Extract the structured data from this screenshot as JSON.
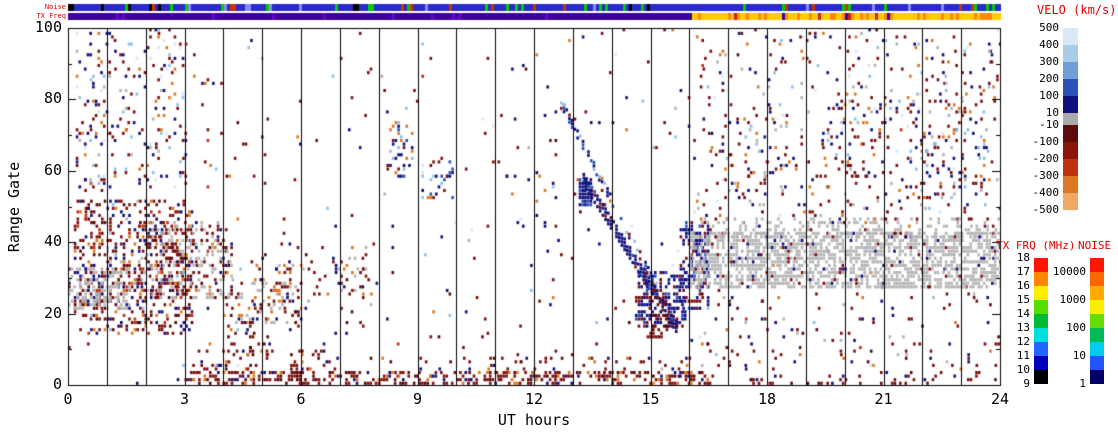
{
  "strip_labels": {
    "noise": "Noise",
    "tx_freq": "TX Freq"
  },
  "colorbars": {
    "velocity": {
      "title": "VELO (km/s)",
      "tick_labels": [
        "500",
        "400",
        "300",
        "200",
        "100",
        "10",
        "-10",
        "-100",
        "-200",
        "-300",
        "-400",
        "-500"
      ],
      "segments": [
        "#d9e8f5",
        "#a9cce8",
        "#6f9fd6",
        "#2a52b8",
        "#10107e",
        "#ababab",
        "#5e0b0b",
        "#8b1508",
        "#bb3311",
        "#dd7722",
        "#f0aa66"
      ]
    },
    "tx_frq": {
      "title": "TX FRQ (MHz)",
      "tick_labels": [
        "18",
        "17",
        "16",
        "15",
        "14",
        "13",
        "12",
        "11",
        "10",
        "9"
      ],
      "segments": [
        "#ff1500",
        "#ff8800",
        "#ffee00",
        "#55dd00",
        "#00bb33",
        "#00dddd",
        "#2266ff",
        "#0000bb",
        "#000000"
      ]
    },
    "noise": {
      "title": "NOISE",
      "tick_labels": [
        "10000",
        "1000",
        "100",
        "10",
        "1"
      ],
      "segments": [
        "#ff1500",
        "#ff6600",
        "#ffaa00",
        "#ffee00",
        "#66dd00",
        "#00bb55",
        "#00ccee",
        "#2255ff",
        "#000066"
      ]
    }
  },
  "chart_data": {
    "type": "heatmap",
    "description": "Radar range-time scatter plot: Doppler velocity per range gate vs universal time. Blue cells = positive velocity, red/orange cells = negative velocity, gray cells = ground scatter. Top strips show noise level and transmit frequency vs time.",
    "xlabel": "UT hours",
    "ylabel": "Range Gate",
    "xlim": [
      0,
      24
    ],
    "ylim": [
      0,
      100
    ],
    "x_ticks": [
      0,
      3,
      6,
      9,
      12,
      15,
      18,
      21,
      24
    ],
    "y_ticks": [
      0,
      20,
      40,
      60,
      80,
      100
    ],
    "hour_gridlines_every": 1,
    "seed": 1337,
    "palette": {
      "dark_red": "#7d0f0f",
      "maroon": "#560a0a",
      "red_orange": "#bb3311",
      "orange": "#dd7722",
      "pale_orange": "#f0aa66",
      "dark_blue": "#10107e",
      "mid_blue": "#2a52b8",
      "light_blue": "#8fc0e8",
      "pale_blue": "#d9e8f5",
      "gray": "#b5b5b5",
      "black": "#000000"
    },
    "strips": {
      "noise": {
        "base": "#2a2acc",
        "specks": [
          [
            "#00cc00",
            0.1
          ],
          [
            "#cc3300",
            0.04
          ],
          [
            "#8888ff",
            0.04
          ],
          [
            "#000000",
            0.02
          ]
        ]
      },
      "tx_freq": {
        "change_hour": 16.0,
        "before": "#3d0099",
        "before_specks": [
          [
            "#6600cc",
            0.04
          ]
        ],
        "after": "#ffcc00",
        "after_specks": [
          [
            "#ff8800",
            0.22
          ],
          [
            "#cc2200",
            0.05
          ],
          [
            "#3d0099",
            0.02
          ]
        ]
      }
    },
    "features": [
      {
        "kind": "speckle",
        "x": [
          0,
          24
        ],
        "y": [
          0,
          100
        ],
        "density": 0.012,
        "colors": [
          [
            "dark_red",
            35
          ],
          [
            "dark_blue",
            22
          ],
          [
            "orange",
            10
          ],
          [
            "light_blue",
            10
          ],
          [
            "maroon",
            8
          ],
          [
            "pale_blue",
            6
          ],
          [
            "gray",
            5
          ],
          [
            "red_orange",
            4
          ]
        ]
      },
      {
        "kind": "speckle",
        "x": [
          0.15,
          3.2
        ],
        "y": [
          14,
          52
        ],
        "density": 0.3,
        "colors": [
          [
            "dark_red",
            40
          ],
          [
            "maroon",
            18
          ],
          [
            "dark_blue",
            16
          ],
          [
            "orange",
            10
          ],
          [
            "red_orange",
            8
          ],
          [
            "light_blue",
            4
          ],
          [
            "gray",
            4
          ]
        ]
      },
      {
        "kind": "speckle",
        "x": [
          0,
          1.6
        ],
        "y": [
          21,
          33
        ],
        "density": 0.5,
        "colors": [
          [
            "gray",
            85
          ],
          [
            "dark_red",
            10
          ],
          [
            "dark_blue",
            5
          ]
        ]
      },
      {
        "kind": "speckle",
        "x": [
          0.2,
          3.0
        ],
        "y": [
          55,
          100
        ],
        "density": 0.11,
        "colors": [
          [
            "dark_red",
            30
          ],
          [
            "dark_blue",
            28
          ],
          [
            "orange",
            14
          ],
          [
            "light_blue",
            12
          ],
          [
            "gray",
            8
          ],
          [
            "pale_blue",
            8
          ]
        ]
      },
      {
        "kind": "speckle",
        "x": [
          1.8,
          4.2
        ],
        "y": [
          24,
          46
        ],
        "density": 0.33,
        "colors": [
          [
            "gray",
            42
          ],
          [
            "dark_red",
            32
          ],
          [
            "maroon",
            10
          ],
          [
            "dark_blue",
            10
          ],
          [
            "orange",
            6
          ]
        ]
      },
      {
        "kind": "speckle",
        "x": [
          4.3,
          5.6
        ],
        "y": [
          17,
          30
        ],
        "density": 0.22,
        "colors": [
          [
            "gray",
            55
          ],
          [
            "dark_red",
            25
          ],
          [
            "orange",
            12
          ],
          [
            "dark_blue",
            8
          ]
        ]
      },
      {
        "kind": "speckle",
        "x": [
          3.0,
          16.5
        ],
        "y": [
          0,
          4
        ],
        "density": 0.42,
        "colors": [
          [
            "dark_red",
            58
          ],
          [
            "maroon",
            22
          ],
          [
            "orange",
            10
          ],
          [
            "dark_blue",
            10
          ]
        ]
      },
      {
        "kind": "speckle",
        "x": [
          3.2,
          7.0
        ],
        "y": [
          4,
          12
        ],
        "density": 0.16,
        "colors": [
          [
            "dark_red",
            55
          ],
          [
            "maroon",
            15
          ],
          [
            "orange",
            15
          ],
          [
            "dark_blue",
            15
          ]
        ]
      },
      {
        "kind": "speckle",
        "x": [
          8.0,
          16.0
        ],
        "y": [
          2,
          8
        ],
        "density": 0.08,
        "colors": [
          [
            "dark_red",
            60
          ],
          [
            "maroon",
            15
          ],
          [
            "orange",
            10
          ],
          [
            "dark_blue",
            15
          ]
        ]
      },
      {
        "kind": "speckle",
        "x": [
          5.2,
          6.0
        ],
        "y": [
          15,
          34
        ],
        "density": 0.18,
        "colors": [
          [
            "dark_red",
            45
          ],
          [
            "orange",
            18
          ],
          [
            "maroon",
            15
          ],
          [
            "dark_blue",
            12
          ],
          [
            "gray",
            10
          ]
        ]
      },
      {
        "kind": "speckle",
        "x": [
          8.2,
          8.9
        ],
        "y": [
          58,
          74
        ],
        "density": 0.22,
        "colors": [
          [
            "dark_blue",
            28
          ],
          [
            "light_blue",
            22
          ],
          [
            "mid_blue",
            18
          ],
          [
            "dark_red",
            18
          ],
          [
            "orange",
            14
          ]
        ]
      },
      {
        "kind": "speckle",
        "x": [
          9.1,
          9.9
        ],
        "y": [
          52,
          63
        ],
        "density": 0.2,
        "colors": [
          [
            "dark_blue",
            30
          ],
          [
            "light_blue",
            20
          ],
          [
            "mid_blue",
            18
          ],
          [
            "dark_red",
            20
          ],
          [
            "orange",
            12
          ]
        ]
      },
      {
        "kind": "speckle",
        "x": [
          11.2,
          12.6
        ],
        "y": [
          44,
          60
        ],
        "density": 0.07,
        "colors": [
          [
            "dark_blue",
            30
          ],
          [
            "dark_red",
            25
          ],
          [
            "light_blue",
            20
          ],
          [
            "orange",
            15
          ],
          [
            "pale_blue",
            10
          ]
        ]
      },
      {
        "kind": "streak",
        "from": [
          12.6,
          80
        ],
        "to": [
          15.1,
          27
        ],
        "width_gates": 3,
        "density": 0.5,
        "colors": [
          [
            "dark_blue",
            45
          ],
          [
            "mid_blue",
            20
          ],
          [
            "light_blue",
            12
          ],
          [
            "dark_red",
            15
          ],
          [
            "orange",
            8
          ]
        ]
      },
      {
        "kind": "streak",
        "from": [
          13.25,
          57
        ],
        "to": [
          15.6,
          16
        ],
        "width_gates": 4,
        "density": 0.8,
        "colors": [
          [
            "dark_blue",
            76
          ],
          [
            "mid_blue",
            14
          ],
          [
            "dark_red",
            10
          ]
        ]
      },
      {
        "kind": "speckle",
        "x": [
          13.15,
          13.5
        ],
        "y": [
          50,
          58
        ],
        "density": 0.75,
        "colors": [
          [
            "dark_blue",
            85
          ],
          [
            "mid_blue",
            15
          ]
        ]
      },
      {
        "kind": "speckle",
        "x": [
          14.6,
          15.9
        ],
        "y": [
          16,
          32
        ],
        "density": 0.45,
        "colors": [
          [
            "dark_blue",
            58
          ],
          [
            "dark_red",
            26
          ],
          [
            "maroon",
            8
          ],
          [
            "mid_blue",
            8
          ]
        ]
      },
      {
        "kind": "speckle",
        "x": [
          14.9,
          15.45
        ],
        "y": [
          13,
          20
        ],
        "density": 0.4,
        "colors": [
          [
            "dark_red",
            75
          ],
          [
            "maroon",
            25
          ]
        ]
      },
      {
        "kind": "speckle",
        "x": [
          15.75,
          16.5
        ],
        "y": [
          20,
          46
        ],
        "density": 0.42,
        "colors": [
          [
            "dark_blue",
            66
          ],
          [
            "mid_blue",
            14
          ],
          [
            "dark_red",
            20
          ]
        ]
      },
      {
        "kind": "speckle",
        "x": [
          16.0,
          24.0
        ],
        "y": [
          27,
          43
        ],
        "density": 0.62,
        "colors": [
          [
            "gray",
            92
          ],
          [
            "dark_red",
            4
          ],
          [
            "dark_blue",
            4
          ]
        ]
      },
      {
        "kind": "speckle",
        "x": [
          16.3,
          24.0
        ],
        "y": [
          41,
          47
        ],
        "density": 0.25,
        "colors": [
          [
            "gray",
            88
          ],
          [
            "dark_red",
            8
          ],
          [
            "dark_blue",
            4
          ]
        ]
      },
      {
        "kind": "speckle",
        "x": [
          16.2,
          24.0
        ],
        "y": [
          46,
          100
        ],
        "density": 0.055,
        "colors": [
          [
            "dark_red",
            38
          ],
          [
            "dark_blue",
            20
          ],
          [
            "orange",
            12
          ],
          [
            "light_blue",
            10
          ],
          [
            "gray",
            10
          ],
          [
            "pale_blue",
            10
          ]
        ]
      },
      {
        "kind": "speckle",
        "x": [
          17.0,
          18.6
        ],
        "y": [
          52,
          78
        ],
        "density": 0.1,
        "colors": [
          [
            "dark_red",
            35
          ],
          [
            "dark_blue",
            25
          ],
          [
            "orange",
            12
          ],
          [
            "light_blue",
            12
          ],
          [
            "gray",
            16
          ]
        ]
      },
      {
        "kind": "speckle",
        "x": [
          19.4,
          21.2
        ],
        "y": [
          58,
          84
        ],
        "density": 0.09,
        "colors": [
          [
            "dark_red",
            35
          ],
          [
            "dark_blue",
            25
          ],
          [
            "orange",
            14
          ],
          [
            "light_blue",
            12
          ],
          [
            "gray",
            14
          ]
        ]
      },
      {
        "kind": "speckle",
        "x": [
          21.6,
          23.6
        ],
        "y": [
          52,
          88
        ],
        "density": 0.09,
        "colors": [
          [
            "dark_red",
            36
          ],
          [
            "dark_blue",
            24
          ],
          [
            "orange",
            12
          ],
          [
            "light_blue",
            14
          ],
          [
            "gray",
            14
          ]
        ]
      },
      {
        "kind": "speckle",
        "x": [
          16.3,
          24.0
        ],
        "y": [
          5,
          26
        ],
        "density": 0.05,
        "colors": [
          [
            "dark_red",
            45
          ],
          [
            "dark_blue",
            20
          ],
          [
            "maroon",
            10
          ],
          [
            "orange",
            10
          ],
          [
            "gray",
            15
          ]
        ]
      },
      {
        "kind": "speckle",
        "x": [
          16.5,
          24.0
        ],
        "y": [
          0,
          4
        ],
        "density": 0.12,
        "colors": [
          [
            "dark_red",
            60
          ],
          [
            "maroon",
            20
          ],
          [
            "dark_blue",
            20
          ]
        ]
      },
      {
        "kind": "speckle",
        "x": [
          4.0,
          8.0
        ],
        "y": [
          14,
          40
        ],
        "density": 0.04,
        "colors": [
          [
            "dark_red",
            40
          ],
          [
            "gray",
            20
          ],
          [
            "orange",
            15
          ],
          [
            "dark_blue",
            15
          ],
          [
            "maroon",
            10
          ]
        ]
      },
      {
        "kind": "speckle",
        "x": [
          6.8,
          7.7
        ],
        "y": [
          24,
          38
        ],
        "density": 0.12,
        "colors": [
          [
            "dark_red",
            45
          ],
          [
            "maroon",
            15
          ],
          [
            "gray",
            20
          ],
          [
            "dark_blue",
            10
          ],
          [
            "orange",
            10
          ]
        ]
      },
      {
        "kind": "speckle",
        "x": [
          4.1,
          4.8
        ],
        "y": [
          8,
          20
        ],
        "density": 0.15,
        "colors": [
          [
            "dark_red",
            50
          ],
          [
            "maroon",
            20
          ],
          [
            "orange",
            15
          ],
          [
            "dark_blue",
            15
          ]
        ]
      }
    ]
  }
}
